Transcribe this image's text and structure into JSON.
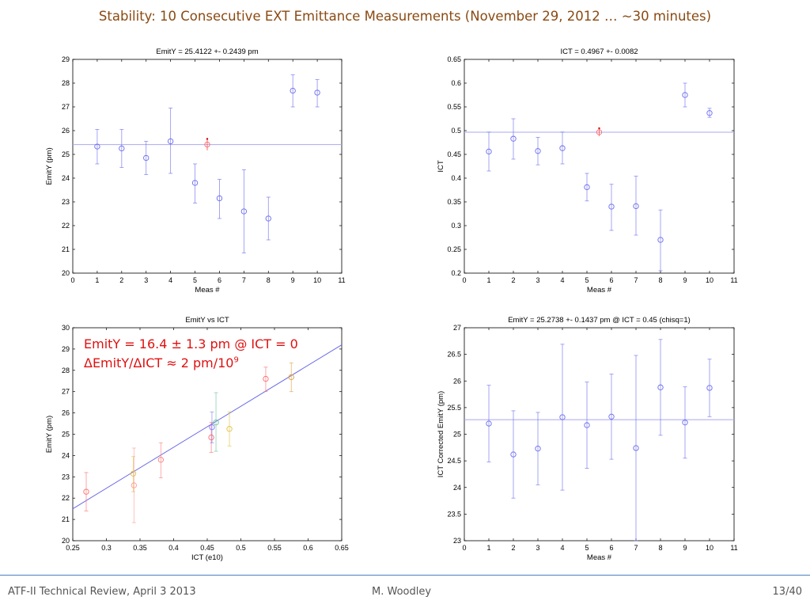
{
  "slide": {
    "title": "Stability: 10 Consecutive EXT Emittance Measurements (November 29, 2012 … ~30 minutes)",
    "annotation_line1": "EmitY = 16.4 ± 1.3 pm @ ICT = 0",
    "annotation_line2": "ΔEmitY/ΔICT ≈ 2 pm/10",
    "annotation_sup": "9",
    "footer_left": "ATF-II Technical Review, April 3 2013",
    "footer_center": "M. Woodley",
    "footer_right": "13/40"
  },
  "chart_data": [
    {
      "type": "scatter",
      "title": "EmitY = 25.4122 +- 0.2439 pm",
      "xlabel": "Meas #",
      "ylabel": "EmitY (pm)",
      "xlim": [
        0,
        11
      ],
      "ylim": [
        20,
        29
      ],
      "xticks": [
        0,
        1,
        2,
        3,
        4,
        5,
        6,
        7,
        8,
        9,
        10,
        11
      ],
      "yticks": [
        20,
        21,
        22,
        23,
        24,
        25,
        26,
        27,
        28,
        29
      ],
      "hline": 25.4122,
      "points": [
        {
          "x": 1,
          "y": 25.33,
          "lo": 24.6,
          "hi": 26.05
        },
        {
          "x": 2,
          "y": 25.25,
          "lo": 24.45,
          "hi": 26.05
        },
        {
          "x": 3,
          "y": 24.85,
          "lo": 24.15,
          "hi": 25.55
        },
        {
          "x": 4,
          "y": 25.55,
          "lo": 24.2,
          "hi": 26.95
        },
        {
          "x": 5,
          "y": 23.8,
          "lo": 22.95,
          "hi": 24.6
        },
        {
          "x": 6,
          "y": 23.15,
          "lo": 22.3,
          "hi": 23.95
        },
        {
          "x": 7,
          "y": 22.6,
          "lo": 20.85,
          "hi": 24.35
        },
        {
          "x": 8,
          "y": 22.3,
          "lo": 21.4,
          "hi": 23.2
        },
        {
          "x": 9,
          "y": 27.68,
          "lo": 27.0,
          "hi": 28.35
        },
        {
          "x": 10,
          "y": 27.6,
          "lo": 27.0,
          "hi": 28.15
        }
      ],
      "mean_marker": {
        "x": 5.5,
        "y": 25.4122,
        "lo": 25.17,
        "hi": 25.65
      },
      "grid": false
    },
    {
      "type": "scatter",
      "title": "ICT = 0.4967 +- 0.0082",
      "xlabel": "Meas #",
      "ylabel": "ICT",
      "xlim": [
        0,
        11
      ],
      "ylim": [
        0.2,
        0.65
      ],
      "xticks": [
        0,
        1,
        2,
        3,
        4,
        5,
        6,
        7,
        8,
        9,
        10,
        11
      ],
      "yticks": [
        0.2,
        0.25,
        0.3,
        0.35,
        0.4,
        0.45,
        0.5,
        0.55,
        0.6,
        0.65
      ],
      "hline": 0.4967,
      "points": [
        {
          "x": 1,
          "y": 0.456,
          "lo": 0.415,
          "hi": 0.497
        },
        {
          "x": 2,
          "y": 0.483,
          "lo": 0.44,
          "hi": 0.525
        },
        {
          "x": 3,
          "y": 0.457,
          "lo": 0.428,
          "hi": 0.486
        },
        {
          "x": 4,
          "y": 0.463,
          "lo": 0.43,
          "hi": 0.497
        },
        {
          "x": 5,
          "y": 0.381,
          "lo": 0.352,
          "hi": 0.41
        },
        {
          "x": 6,
          "y": 0.34,
          "lo": 0.29,
          "hi": 0.387
        },
        {
          "x": 7,
          "y": 0.341,
          "lo": 0.28,
          "hi": 0.404
        },
        {
          "x": 8,
          "y": 0.27,
          "lo": 0.205,
          "hi": 0.333
        },
        {
          "x": 9,
          "y": 0.575,
          "lo": 0.55,
          "hi": 0.6
        },
        {
          "x": 10,
          "y": 0.537,
          "lo": 0.528,
          "hi": 0.547
        }
      ],
      "mean_marker": {
        "x": 5.5,
        "y": 0.4967,
        "lo": 0.4885,
        "hi": 0.5049
      },
      "grid": false
    },
    {
      "type": "scatter",
      "title": "EmitY vs ICT",
      "xlabel": "ICT (e10)",
      "ylabel": "EmitY (pm)",
      "xlim": [
        0.25,
        0.65
      ],
      "ylim": [
        20,
        30
      ],
      "xticks": [
        0.25,
        0.3,
        0.35,
        0.4,
        0.45,
        0.5,
        0.55,
        0.6,
        0.65
      ],
      "yticks": [
        20,
        21,
        22,
        23,
        24,
        25,
        26,
        27,
        28,
        29,
        30
      ],
      "fit_line": [
        [
          0.25,
          21.5
        ],
        [
          0.65,
          29.2
        ]
      ],
      "points": [
        {
          "x": 0.27,
          "y": 22.3,
          "lo": 21.4,
          "hi": 23.2,
          "color": "#ff6a6a"
        },
        {
          "x": 0.34,
          "y": 23.15,
          "lo": 22.3,
          "hi": 23.95,
          "color": "#e0c040"
        },
        {
          "x": 0.341,
          "y": 22.6,
          "lo": 20.85,
          "hi": 24.35,
          "color": "#ff9a9a"
        },
        {
          "x": 0.381,
          "y": 23.8,
          "lo": 22.95,
          "hi": 24.6,
          "color": "#ff7a7a"
        },
        {
          "x": 0.456,
          "y": 24.85,
          "lo": 24.15,
          "hi": 25.55,
          "color": "#ff6a6a"
        },
        {
          "x": 0.457,
          "y": 25.33,
          "lo": 24.6,
          "hi": 26.05,
          "color": "#7a7aff"
        },
        {
          "x": 0.463,
          "y": 25.55,
          "lo": 24.2,
          "hi": 26.95,
          "color": "#6ac0a0"
        },
        {
          "x": 0.483,
          "y": 25.25,
          "lo": 24.45,
          "hi": 26.05,
          "color": "#e0c040"
        },
        {
          "x": 0.537,
          "y": 27.6,
          "lo": 27.0,
          "hi": 28.15,
          "color": "#ff6a6a"
        },
        {
          "x": 0.575,
          "y": 27.68,
          "lo": 27.0,
          "hi": 28.35,
          "color": "#e0a040"
        }
      ],
      "grid": false
    },
    {
      "type": "scatter",
      "title": "EmitY = 25.2738 +- 0.1437 pm @ ICT = 0.45 (chisq=1)",
      "xlabel": "Meas #",
      "ylabel": "ICT Corrected EmitY (pm)",
      "xlim": [
        0,
        11
      ],
      "ylim": [
        23,
        27
      ],
      "xticks": [
        0,
        1,
        2,
        3,
        4,
        5,
        6,
        7,
        8,
        9,
        10,
        11
      ],
      "yticks": [
        23,
        23.5,
        24,
        24.5,
        25,
        25.5,
        26,
        26.5,
        27
      ],
      "hline": 25.2738,
      "points": [
        {
          "x": 1,
          "y": 25.2,
          "lo": 24.48,
          "hi": 25.92
        },
        {
          "x": 2,
          "y": 24.62,
          "lo": 23.8,
          "hi": 25.44
        },
        {
          "x": 3,
          "y": 24.73,
          "lo": 24.05,
          "hi": 25.41
        },
        {
          "x": 4,
          "y": 25.32,
          "lo": 23.95,
          "hi": 26.69
        },
        {
          "x": 5,
          "y": 25.17,
          "lo": 24.36,
          "hi": 25.98
        },
        {
          "x": 6,
          "y": 25.33,
          "lo": 24.53,
          "hi": 26.13
        },
        {
          "x": 7,
          "y": 24.74,
          "lo": 23.0,
          "hi": 26.48
        },
        {
          "x": 8,
          "y": 25.88,
          "lo": 24.98,
          "hi": 26.78
        },
        {
          "x": 9,
          "y": 25.22,
          "lo": 24.55,
          "hi": 25.89
        },
        {
          "x": 10,
          "y": 25.87,
          "lo": 25.33,
          "hi": 26.41
        }
      ],
      "grid": false
    }
  ]
}
